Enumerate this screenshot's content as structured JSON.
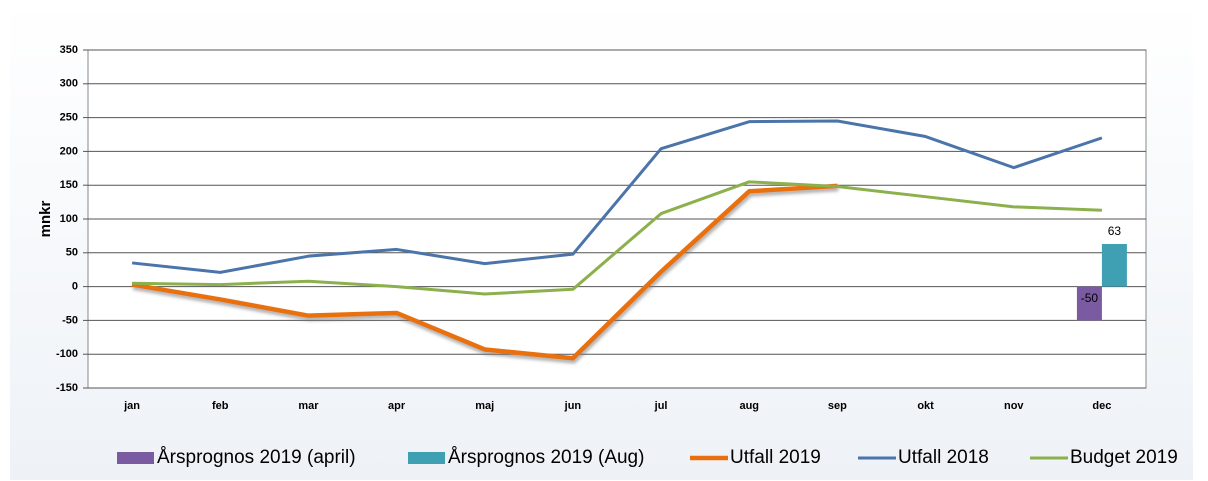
{
  "chart_data": {
    "type": "combo",
    "y_label": "mnkr",
    "categories": [
      "jan",
      "feb",
      "mar",
      "apr",
      "maj",
      "jun",
      "jul",
      "aug",
      "sep",
      "okt",
      "nov",
      "dec"
    ],
    "series": [
      {
        "name": "Årsprognos 2019 (april)",
        "type": "bar",
        "color": "#7a5aa0",
        "values": [
          null,
          null,
          null,
          null,
          null,
          null,
          null,
          null,
          null,
          null,
          null,
          -50
        ]
      },
      {
        "name": "Årsprognos 2019 (Aug)",
        "type": "bar",
        "color": "#3fa0b4",
        "values": [
          null,
          null,
          null,
          null,
          null,
          null,
          null,
          null,
          null,
          null,
          null,
          63
        ]
      },
      {
        "name": "Utfall 2019",
        "type": "line",
        "color": "#e8700e",
        "values": [
          3,
          -19,
          -43,
          -39,
          -93,
          -106,
          22,
          141,
          149,
          null,
          null,
          null
        ]
      },
      {
        "name": "Utfall 2018",
        "type": "line",
        "color": "#4a74aa",
        "values": [
          35,
          21,
          45,
          55,
          34,
          48,
          204,
          244,
          245,
          222,
          176,
          220
        ]
      },
      {
        "name": "Budget 2019",
        "type": "line",
        "color": "#8cb04c",
        "values": [
          5,
          3,
          8,
          0,
          -11,
          -4,
          108,
          155,
          148,
          133,
          118,
          113
        ]
      }
    ],
    "ylim": [
      -150,
      350
    ],
    "yticks": [
      -150,
      -100,
      -50,
      0,
      50,
      100,
      150,
      200,
      250,
      300,
      350
    ],
    "grid": true,
    "legend": "bottom"
  }
}
